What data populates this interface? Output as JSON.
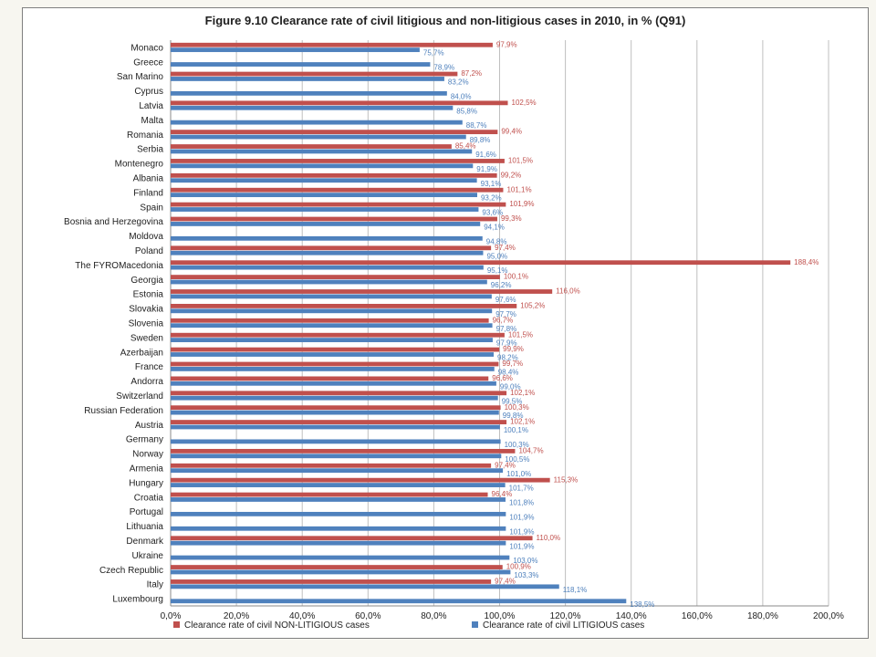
{
  "chart_data": {
    "type": "bar",
    "orientation": "horizontal",
    "title": "Figure 9.10 Clearance rate of civil litigious and non-litigious cases in 2010, in % (Q91)",
    "xlim": [
      0,
      200
    ],
    "xticks": [
      "0,0%",
      "20,0%",
      "40,0%",
      "60,0%",
      "80,0%",
      "100,0%",
      "120,0%",
      "140,0%",
      "160,0%",
      "180,0%",
      "200,0%"
    ],
    "grid": "vertical",
    "legend_position": "bottom",
    "categories": [
      "Monaco",
      "Greece",
      "San Marino",
      "Cyprus",
      "Latvia",
      "Malta",
      "Romania",
      "Serbia",
      "Montenegro",
      "Albania",
      "Finland",
      "Spain",
      "Bosnia and Herzegovina",
      "Moldova",
      "Poland",
      "The FYROMacedonia",
      "Georgia",
      "Estonia",
      "Slovakia",
      "Slovenia",
      "Sweden",
      "Azerbaijan",
      "France",
      "Andorra",
      "Switzerland",
      "Russian Federation",
      "Austria",
      "Germany",
      "Norway",
      "Armenia",
      "Hungary",
      "Croatia",
      "Portugal",
      "Lithuania",
      "Denmark",
      "Ukraine",
      "Czech Republic",
      "Italy",
      "Luxembourg"
    ],
    "series": [
      {
        "name": "Clearance rate of civil NON-LITIGIOUS cases",
        "color": "#c0504d",
        "values": [
          97.9,
          null,
          87.2,
          null,
          102.5,
          null,
          99.4,
          85.4,
          101.5,
          99.2,
          101.1,
          101.9,
          99.3,
          null,
          97.4,
          188.4,
          100.1,
          116.0,
          105.2,
          96.7,
          101.5,
          99.9,
          99.7,
          96.6,
          102.1,
          100.3,
          102.1,
          null,
          104.7,
          97.4,
          115.3,
          96.4,
          null,
          null,
          110.0,
          null,
          100.9,
          97.4,
          null
        ],
        "labels": [
          "97,9%",
          "",
          "87,2%",
          "",
          "102,5%",
          "",
          "99,4%",
          "85,4%",
          "101,5%",
          "99,2%",
          "101,1%",
          "101,9%",
          "99,3%",
          "",
          "97,4%",
          "188,4%",
          "100,1%",
          "116,0%",
          "105,2%",
          "96,7%",
          "101,5%",
          "99,9%",
          "99,7%",
          "96,6%",
          "102,1%",
          "100,3%",
          "102,1%",
          "",
          "104,7%",
          "97,4%",
          "115,3%",
          "96,4%",
          "",
          "",
          "110,0%",
          "",
          "100,9%",
          "97,4%",
          ""
        ]
      },
      {
        "name": "Clearance rate of civil LITIGIOUS cases",
        "color": "#4f81bd",
        "values": [
          75.7,
          78.9,
          83.2,
          84.0,
          85.8,
          88.7,
          89.8,
          91.6,
          91.9,
          93.1,
          93.2,
          93.6,
          94.1,
          94.8,
          95.0,
          95.1,
          96.2,
          97.6,
          97.7,
          97.8,
          97.9,
          98.2,
          98.4,
          99.0,
          99.5,
          99.8,
          100.1,
          100.3,
          100.5,
          101.0,
          101.7,
          101.8,
          101.9,
          101.9,
          101.9,
          103.0,
          103.3,
          118.1,
          138.5
        ],
        "labels": [
          "75,7%",
          "78,9%",
          "83,2%",
          "84,0%",
          "85,8%",
          "88,7%",
          "89,8%",
          "91,6%",
          "91,9%",
          "93,1%",
          "93,2%",
          "93,6%",
          "94,1%",
          "94,8%",
          "95,0%",
          "95,1%",
          "96,2%",
          "97,6%",
          "97,7%",
          "97,8%",
          "97,9%",
          "98,2%",
          "98,4%",
          "99,0%",
          "99,5%",
          "99,8%",
          "100,1%",
          "100,3%",
          "100,5%",
          "101,0%",
          "101,7%",
          "101,8%",
          "101,9%",
          "101,9%",
          "101,9%",
          "103,0%",
          "103,3%",
          "118,1%",
          "138,5%"
        ]
      }
    ]
  }
}
